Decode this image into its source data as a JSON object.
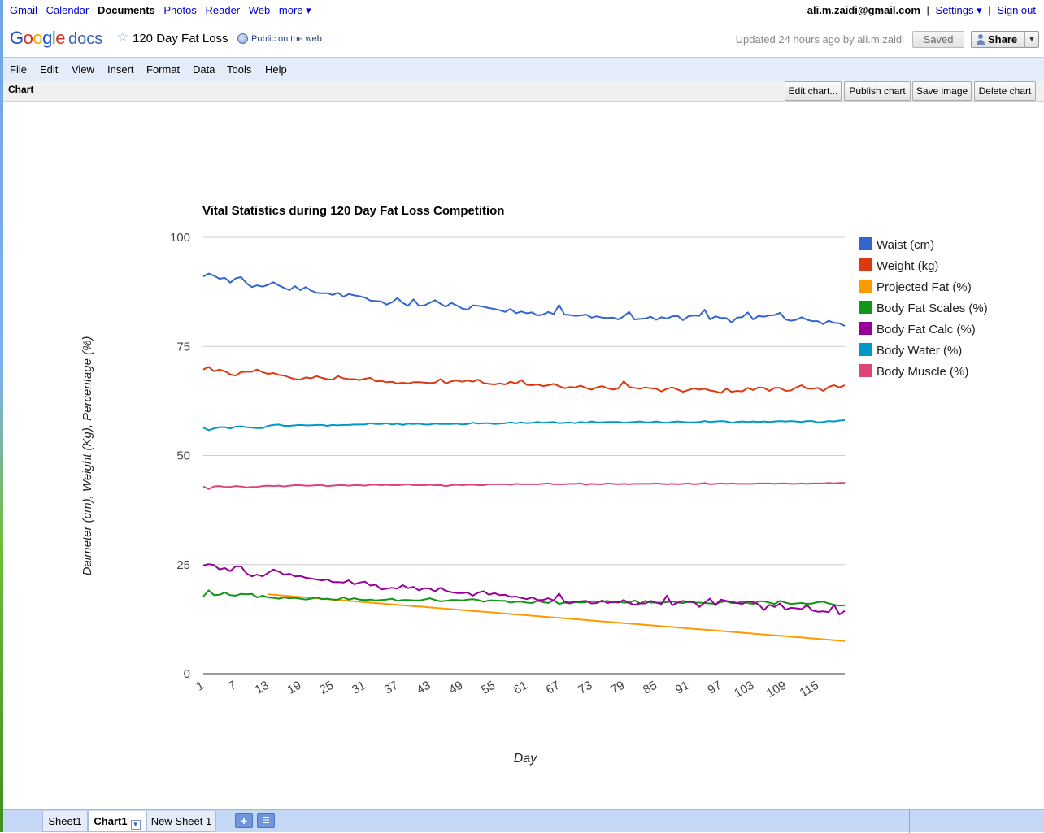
{
  "gbar": {
    "links": [
      "Gmail",
      "Calendar",
      "Documents",
      "Photos",
      "Reader",
      "Web",
      "more ▾"
    ],
    "active": "Documents",
    "user_email": "ali.m.zaidi@gmail.com",
    "settings_label": "Settings ▾",
    "signout_label": "Sign out"
  },
  "header": {
    "logo_google": "Google",
    "logo_docs": "docs",
    "title": "120 Day Fat Loss",
    "visibility": "Public on the web",
    "updated": "Updated 24 hours ago by ali.m.zaidi",
    "saved_label": "Saved",
    "share_label": "Share"
  },
  "menu": [
    "File",
    "Edit",
    "View",
    "Insert",
    "Format",
    "Data",
    "Tools",
    "Help"
  ],
  "chartbar": {
    "title": "Chart",
    "buttons": [
      "Edit chart...",
      "Publish chart",
      "Save image",
      "Delete chart"
    ]
  },
  "sheets": {
    "tabs": [
      "Sheet1",
      "Chart1",
      "New Sheet 1"
    ],
    "active": "Chart1"
  },
  "chart_data": {
    "type": "line",
    "title": "Vital Statistics during 120 Day Fat Loss Competition",
    "xlabel": "Day",
    "ylabel": "Daimeter (cm), Weight (Kg), Percentage (%)",
    "ylim": [
      0,
      100
    ],
    "yticks": [
      0,
      25,
      50,
      75,
      100
    ],
    "xlim": [
      1,
      120
    ],
    "xticks": [
      1,
      7,
      13,
      19,
      25,
      31,
      37,
      43,
      49,
      55,
      61,
      67,
      73,
      79,
      85,
      91,
      97,
      103,
      109,
      115
    ],
    "grid": true,
    "legend_position": "right",
    "series": [
      {
        "name": "Waist (cm)",
        "color": "#3366cc",
        "start_x": 1,
        "values": [
          91,
          91.7,
          91.2,
          90.5,
          90.7,
          89.6,
          90.6,
          90.9,
          89.5,
          88.6,
          89,
          88.7,
          89.1,
          89.7,
          89,
          88.4,
          87.9,
          88.8,
          87.9,
          88.6,
          87.8,
          87.3,
          87.2,
          87.2,
          86.8,
          87.3,
          86.4,
          87,
          86.7,
          86.5,
          86.2,
          85.5,
          85.4,
          85.3,
          84.6,
          85.1,
          86.1,
          85,
          84.3,
          85.8,
          84.3,
          84.4,
          85,
          85.6,
          84.8,
          84.1,
          85,
          84.4,
          83.7,
          83.4,
          84.4,
          84.3,
          84.1,
          83.8,
          83.6,
          83.3,
          82.9,
          83.6,
          82.6,
          83,
          82.6,
          82.8,
          82.1,
          82.3,
          82.9,
          82.4,
          84.5,
          82.3,
          82.2,
          82,
          82.1,
          82.3,
          81.6,
          81.9,
          81.6,
          81.5,
          81.6,
          81.2,
          81.9,
          82.9,
          81.2,
          81.3,
          81.4,
          81.8,
          81.1,
          81.7,
          81.4,
          81.9,
          82,
          81,
          81.9,
          82.1,
          82,
          83.4,
          81.2,
          81.9,
          81.5,
          81.5,
          80.5,
          81.6,
          81.7,
          82.8,
          81.2,
          82,
          81.8,
          82.1,
          82.2,
          82.7,
          81.2,
          80.9,
          81.1,
          81.7,
          81.1,
          80.8,
          80.8,
          80.1,
          80.9,
          80.4,
          80.3,
          79.7
        ]
      },
      {
        "name": "Weight (kg)",
        "color": "#dc3912",
        "start_x": 1,
        "values": [
          69.7,
          70.3,
          69.3,
          69.7,
          69.3,
          68.6,
          68.3,
          69.1,
          69.2,
          69.2,
          69.7,
          69.1,
          68.7,
          68.9,
          68.5,
          68.3,
          67.9,
          67.5,
          67.4,
          67.9,
          67.7,
          68.2,
          67.8,
          67.5,
          67.4,
          68.2,
          67.7,
          67.5,
          67.5,
          67.3,
          67.6,
          67.8,
          67,
          67.1,
          66.8,
          66.9,
          66.5,
          66.7,
          66.5,
          66.8,
          66.8,
          66.7,
          66.6,
          66.7,
          67.5,
          66.5,
          67,
          67.2,
          66.9,
          67.2,
          66.9,
          67.4,
          66.6,
          66.4,
          66.3,
          66.5,
          66.3,
          66.9,
          66.5,
          67.3,
          66.2,
          66.1,
          66.3,
          65.9,
          66.1,
          66.4,
          65.9,
          65.4,
          65.7,
          65.6,
          66,
          65.5,
          65.1,
          65.6,
          65.9,
          65.4,
          65.1,
          65.4,
          67,
          65.7,
          65.5,
          65.3,
          65.6,
          65.4,
          65.3,
          64.7,
          65.3,
          65.6,
          65.1,
          64.6,
          65,
          65.4,
          65.1,
          65.3,
          64.9,
          64.7,
          64.3,
          65.3,
          64.6,
          64.8,
          64.7,
          65.5,
          65,
          65.6,
          65.5,
          64.8,
          65.5,
          65.5,
          64.8,
          64.9,
          65.6,
          66.1,
          65.3,
          65.3,
          65.5,
          64.8,
          65.7,
          66.1,
          65.6,
          66.1
        ]
      },
      {
        "name": "Projected Fat (%)",
        "color": "#ff9900",
        "start_x": 13,
        "values": [
          18.2,
          18.1,
          18,
          17.9,
          17.8,
          17.7,
          17.6,
          17.5,
          17.4,
          17.3,
          17.2,
          17.1,
          17,
          16.9,
          16.8,
          16.7,
          16.6,
          16.5,
          16.4,
          16.3,
          16.2,
          16.1,
          16,
          15.9,
          15.8,
          15.7,
          15.6,
          15.5,
          15.4,
          15.3,
          15.2,
          15.1,
          15,
          14.9,
          14.8,
          14.7,
          14.6,
          14.5,
          14.4,
          14.3,
          14.2,
          14.1,
          14,
          13.9,
          13.8,
          13.7,
          13.6,
          13.5,
          13.4,
          13.3,
          13.2,
          13.1,
          13,
          12.9,
          12.8,
          12.7,
          12.6,
          12.5,
          12.4,
          12.3,
          12.2,
          12.1,
          12,
          11.9,
          11.8,
          11.7,
          11.6,
          11.5,
          11.4,
          11.3,
          11.2,
          11.1,
          11,
          10.9,
          10.8,
          10.7,
          10.6,
          10.5,
          10.4,
          10.3,
          10.2,
          10.1,
          10,
          9.9,
          9.8,
          9.7,
          9.6,
          9.5,
          9.4,
          9.3,
          9.2,
          9.1,
          9,
          8.9,
          8.8,
          8.7,
          8.6,
          8.5,
          8.4,
          8.3,
          8.2,
          8.1,
          8,
          7.9,
          7.8,
          7.7,
          7.6,
          7.5
        ]
      },
      {
        "name": "Body Fat Scales (%)",
        "color": "#109618",
        "start_x": 1,
        "values": [
          17.7,
          19.1,
          18,
          18.1,
          18.6,
          18,
          17.9,
          18.3,
          18.2,
          18.3,
          17.5,
          17.9,
          17.5,
          17.4,
          17.2,
          17.5,
          17.3,
          17.4,
          17.2,
          17,
          17.2,
          17.5,
          17.1,
          17.2,
          17,
          17,
          17.5,
          17,
          17.3,
          17,
          16.9,
          17,
          16.8,
          16.9,
          17,
          17.2,
          16.7,
          16.9,
          16.9,
          16.8,
          16.8,
          17,
          17.3,
          16.9,
          16.6,
          16.7,
          16.9,
          16.9,
          16.8,
          17,
          17.1,
          16.9,
          16.5,
          16.8,
          16.8,
          16.7,
          16.7,
          16.3,
          16.5,
          16.5,
          16.3,
          16.2,
          16.7,
          16.4,
          16.2,
          16.8,
          16,
          16.3,
          16.1,
          16.4,
          16.3,
          16.4,
          16.6,
          16.6,
          16.5,
          16.7,
          16.3,
          16.5,
          16.3,
          16.3,
          16.8,
          16.1,
          16.7,
          16.3,
          16.3,
          16.3,
          16.4,
          16.6,
          16.3,
          16.2,
          16.5,
          16.3,
          16.3,
          16.2,
          16.1,
          16,
          16.4,
          16.6,
          16.2,
          16.2,
          16.5,
          16.2,
          16,
          16.6,
          16.6,
          16.3,
          16,
          16.7,
          16.3,
          16,
          16.1,
          16.2,
          16,
          16.1,
          16.4,
          16.5,
          16.1,
          15.8,
          15.6,
          15.7
        ]
      },
      {
        "name": "Body Fat Calc (%)",
        "color": "#990099",
        "start_x": 1,
        "values": [
          24.8,
          25.1,
          24.9,
          23.9,
          24.2,
          23.5,
          24.6,
          24.6,
          23,
          22.3,
          22.7,
          22.3,
          23.1,
          23.9,
          23.4,
          22.7,
          22.9,
          22.3,
          22.4,
          22,
          21.8,
          21.6,
          21.4,
          21.6,
          21,
          21,
          20.9,
          21.4,
          20.5,
          20.9,
          21.1,
          20.2,
          20.4,
          19.3,
          19.5,
          19.7,
          19.5,
          20.3,
          19.6,
          19.9,
          19.1,
          19.6,
          19.5,
          18.9,
          19.7,
          19,
          18.7,
          18.5,
          18.5,
          18.6,
          17.9,
          18.6,
          18.9,
          18.1,
          18.5,
          18,
          18.1,
          17.6,
          17.7,
          17.4,
          17.1,
          17.5,
          16.9,
          16.9,
          17.3,
          16.8,
          18.4,
          16.5,
          16.3,
          16.5,
          16.6,
          16.7,
          16.1,
          16.2,
          16.8,
          16.2,
          16.5,
          16.3,
          16.9,
          16.2,
          15.8,
          16.1,
          16.1,
          16.7,
          16.3,
          16,
          17.9,
          15.7,
          16.3,
          16.7,
          16.4,
          16.5,
          15.3,
          16.3,
          17.2,
          15.7,
          17,
          16.7,
          16.5,
          16.2,
          16,
          16.6,
          16.4,
          15.9,
          14.6,
          15.8,
          15.3,
          16.1,
          14.7,
          15.1,
          15,
          14.8,
          15.7,
          14.5,
          14.2,
          14.3,
          14.1,
          15.8,
          13.6,
          14.4
        ]
      },
      {
        "name": "Body Water (%)",
        "color": "#0099c6",
        "start_x": 1,
        "values": [
          56.4,
          55.8,
          56.2,
          56.5,
          56.5,
          56.2,
          56.6,
          56.7,
          56.5,
          56.4,
          56.3,
          56.3,
          56.8,
          57,
          57.1,
          56.8,
          56.8,
          56.9,
          57,
          56.9,
          56.9,
          57,
          57,
          56.8,
          57,
          56.9,
          57,
          57,
          57.1,
          57.1,
          57.1,
          57.4,
          57.2,
          57.2,
          57.4,
          57.1,
          57.3,
          57,
          57.3,
          57.2,
          57.3,
          57.1,
          57.1,
          57.3,
          57.2,
          57.2,
          57.2,
          57.3,
          57.1,
          57.2,
          57.5,
          57.3,
          57.4,
          57.4,
          57.2,
          57.3,
          57.4,
          57.6,
          57.4,
          57.6,
          57.4,
          57.5,
          57.7,
          57.5,
          57.6,
          57.7,
          57.4,
          57.5,
          57.6,
          57.4,
          57.7,
          57.5,
          57.8,
          57.6,
          57.6,
          57.7,
          57.7,
          57.7,
          57.5,
          57.6,
          57.7,
          57.8,
          57.6,
          57.6,
          57.8,
          57.6,
          57.5,
          57.7,
          57.8,
          57.7,
          57.6,
          57.6,
          57.7,
          57.9,
          57.7,
          57.8,
          57.9,
          57.8,
          57.5,
          57.7,
          57.8,
          57.7,
          57.8,
          57.7,
          57.8,
          57.7,
          57.8,
          57.9,
          57.8,
          57.9,
          57.8,
          57.7,
          57.9,
          57.9,
          57.6,
          57.7,
          57.9,
          57.8,
          58,
          58.1
        ]
      },
      {
        "name": "Body Muscle (%)",
        "color": "#dd4477",
        "start_x": 1,
        "values": [
          42.9,
          42.3,
          42.9,
          43,
          42.8,
          42.8,
          43,
          42.9,
          42.7,
          42.8,
          42.8,
          43,
          43.1,
          43,
          43.1,
          42.9,
          43.1,
          43.2,
          43.2,
          43.1,
          43.1,
          43.2,
          43.2,
          43,
          43.1,
          43.2,
          43.2,
          43.1,
          43.2,
          43.2,
          43.1,
          43.3,
          43.3,
          43.2,
          43.3,
          43.2,
          43.2,
          43.3,
          43.4,
          43.2,
          43.2,
          43.2,
          43.3,
          43.2,
          43.2,
          43,
          43.2,
          43.3,
          43.2,
          43.3,
          43.3,
          43.2,
          43.2,
          43.4,
          43.4,
          43.4,
          43.4,
          43.3,
          43.5,
          43.4,
          43.4,
          43.4,
          43.4,
          43.5,
          43.6,
          43.4,
          43.4,
          43.4,
          43.5,
          43.5,
          43.6,
          43.3,
          43.5,
          43.4,
          43.4,
          43.6,
          43.5,
          43.4,
          43.5,
          43.4,
          43.5,
          43.5,
          43.5,
          43.5,
          43.6,
          43.5,
          43.4,
          43.5,
          43.4,
          43.5,
          43.6,
          43.4,
          43.5,
          43.7,
          43.4,
          43.5,
          43.6,
          43.5,
          43.6,
          43.5,
          43.5,
          43.5,
          43.5,
          43.6,
          43.6,
          43.6,
          43.5,
          43.6,
          43.6,
          43.5,
          43.5,
          43.6,
          43.5,
          43.6,
          43.6,
          43.6,
          43.7,
          43.6,
          43.7,
          43.7
        ]
      }
    ]
  }
}
